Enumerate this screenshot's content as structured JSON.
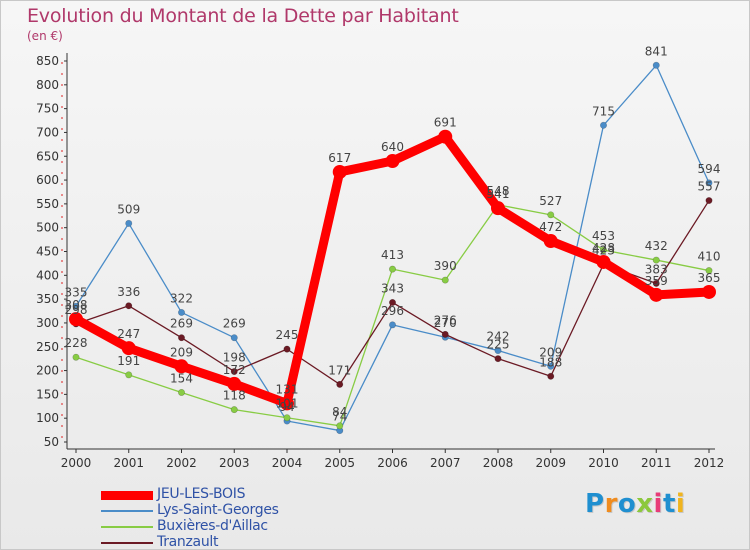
{
  "chart_data": {
    "type": "line",
    "title": "Evolution du Montant de la Dette par Habitant",
    "unit_label": "(en €)",
    "xlabel": "",
    "ylabel": "",
    "categories": [
      "2000",
      "2001",
      "2002",
      "2003",
      "2004",
      "2005",
      "2006",
      "2007",
      "2008",
      "2009",
      "2010",
      "2011",
      "2012"
    ],
    "ylim": [
      50,
      850
    ],
    "yticks": [
      50,
      100,
      150,
      200,
      250,
      300,
      350,
      400,
      450,
      500,
      550,
      600,
      650,
      700,
      750,
      800,
      850
    ],
    "grid": false,
    "legend_position": "bottom-left",
    "series": [
      {
        "name": "JEU-LES-BOIS",
        "color": "#ff0000",
        "values": [
          308,
          247,
          209,
          172,
          131,
          617,
          640,
          691,
          541,
          472,
          428,
          359,
          365
        ]
      },
      {
        "name": "Lys-Saint-Georges",
        "color": "#4a8cc8",
        "values": [
          335,
          509,
          322,
          269,
          94,
          74,
          296,
          270,
          242,
          209,
          715,
          841,
          594
        ]
      },
      {
        "name": "Buxières-d'Aillac",
        "color": "#88cc44",
        "values": [
          228,
          191,
          154,
          118,
          101,
          84,
          413,
          390,
          548,
          527,
          453,
          432,
          410
        ]
      },
      {
        "name": "Tranzault",
        "color": "#6b1a24",
        "values": [
          298,
          336,
          269,
          198,
          245,
          171,
          343,
          276,
          225,
          188,
          423,
          383,
          557
        ]
      }
    ]
  },
  "logo": {
    "text": "Proxiti",
    "colors": [
      "#1f8fd0",
      "#f08c1e",
      "#1f8fd0",
      "#8cc83c",
      "#e83c78",
      "#1f8fd0",
      "#f0b41e"
    ]
  }
}
